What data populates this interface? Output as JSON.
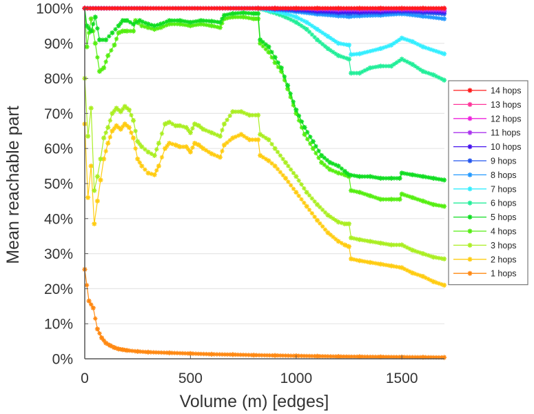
{
  "chart_data": {
    "type": "line",
    "title": "",
    "xlabel": "Volume (m) [edges]",
    "ylabel": "Mean reachable part",
    "xlim": [
      0,
      1700
    ],
    "ylim": [
      0,
      100
    ],
    "xticks": [
      0,
      500,
      1000,
      1500
    ],
    "xtick_labels": [
      "0",
      "500",
      "1000",
      "1500"
    ],
    "yticks": [
      0,
      10,
      20,
      30,
      40,
      50,
      60,
      70,
      80,
      90,
      100
    ],
    "ytick_labels": [
      "0%",
      "10%",
      "20%",
      "30%",
      "40%",
      "50%",
      "60%",
      "70%",
      "80%",
      "90%",
      "100%"
    ],
    "grid": "horizontal",
    "marker": "asterisk",
    "legend_position": "right",
    "series": [
      {
        "name": "14 hops",
        "color": "#ff1a1a",
        "x": [
          0,
          820,
          900,
          1000,
          1100,
          1200,
          1300,
          1400,
          1500,
          1600,
          1700
        ],
        "y": [
          100,
          100,
          100,
          100,
          100,
          100,
          100,
          100,
          100,
          100,
          100
        ]
      },
      {
        "name": "13 hops",
        "color": "#ff3399",
        "x": [
          0,
          820,
          900,
          1000,
          1100,
          1200,
          1300,
          1400,
          1500,
          1600,
          1700
        ],
        "y": [
          100,
          100,
          100,
          100,
          100,
          100,
          100,
          100,
          100,
          100,
          100
        ]
      },
      {
        "name": "12 hops",
        "color": "#ee22dd",
        "x": [
          0,
          820,
          900,
          1000,
          1100,
          1200,
          1300,
          1400,
          1500,
          1600,
          1700
        ],
        "y": [
          100,
          100,
          100,
          100,
          99.9,
          99.9,
          99.9,
          99.9,
          99.9,
          99.9,
          99.8
        ]
      },
      {
        "name": "11 hops",
        "color": "#aa33ee",
        "x": [
          0,
          820,
          900,
          1000,
          1100,
          1200,
          1300,
          1400,
          1500,
          1600,
          1700
        ],
        "y": [
          100,
          100,
          100,
          99.9,
          99.7,
          99.5,
          99.5,
          99.5,
          99.6,
          99.5,
          99.4
        ]
      },
      {
        "name": "10 hops",
        "color": "#4411ee",
        "x": [
          0,
          820,
          900,
          1000,
          1100,
          1200,
          1300,
          1400,
          1500,
          1600,
          1700
        ],
        "y": [
          100,
          100,
          99.9,
          99.7,
          99.3,
          99.0,
          99.0,
          99.1,
          99.4,
          99.2,
          99.0
        ]
      },
      {
        "name": "9 hops",
        "color": "#2255ee",
        "x": [
          0,
          820,
          900,
          1000,
          1100,
          1200,
          1250,
          1300,
          1400,
          1500,
          1600,
          1700
        ],
        "y": [
          100,
          100,
          99.8,
          99.4,
          98.9,
          98.6,
          98.5,
          98.6,
          98.7,
          99.0,
          98.7,
          98.4
        ]
      },
      {
        "name": "8 hops",
        "color": "#2299ff",
        "x": [
          0,
          820,
          900,
          1000,
          1100,
          1200,
          1250,
          1300,
          1400,
          1500,
          1600,
          1700
        ],
        "y": [
          100,
          100,
          99.6,
          99.0,
          98.3,
          97.8,
          97.6,
          97.8,
          98.0,
          98.4,
          97.7,
          97.0
        ]
      },
      {
        "name": "7 hops",
        "color": "#33eeff",
        "x": [
          0,
          820,
          880,
          950,
          1000,
          1050,
          1100,
          1150,
          1200,
          1250,
          1260,
          1300,
          1400,
          1450,
          1500,
          1550,
          1600,
          1700
        ],
        "y": [
          100,
          100,
          99.3,
          98.5,
          97.5,
          96.0,
          94.0,
          92.0,
          90.0,
          89.5,
          86.8,
          87.0,
          88.5,
          89.5,
          91.5,
          90.5,
          89.0,
          87.0
        ]
      },
      {
        "name": "6 hops",
        "color": "#22ee99",
        "x": [
          0,
          820,
          880,
          950,
          1000,
          1050,
          1100,
          1150,
          1200,
          1250,
          1260,
          1300,
          1350,
          1400,
          1450,
          1500,
          1550,
          1600,
          1650,
          1700
        ],
        "y": [
          100,
          100,
          99.0,
          97.5,
          96.0,
          94.0,
          91.0,
          88.5,
          86.5,
          85.5,
          81.5,
          81.5,
          83.0,
          83.5,
          83.5,
          85.5,
          84.0,
          82.0,
          81.0,
          79.5
        ]
      },
      {
        "name": "5 hops",
        "color": "#11dd22",
        "x": [
          0,
          10,
          30,
          50,
          70,
          100,
          130,
          160,
          180,
          200,
          230,
          260,
          300,
          330,
          360,
          400,
          450,
          500,
          550,
          600,
          640,
          660,
          700,
          750,
          800,
          820,
          830,
          870,
          900,
          930,
          960,
          1000,
          1040,
          1080,
          1120,
          1160,
          1200,
          1230,
          1250,
          1300,
          1350,
          1400,
          1450,
          1490,
          1500,
          1550,
          1600,
          1650,
          1700
        ],
        "y": [
          100,
          95,
          93.5,
          97.5,
          91,
          91,
          93,
          95,
          96.5,
          96.5,
          95.5,
          96.5,
          95.5,
          95,
          95.5,
          96.5,
          96.5,
          96,
          96.5,
          96.3,
          96,
          98,
          98.5,
          98.7,
          98.5,
          98.5,
          91,
          89,
          86,
          83,
          78,
          71,
          66,
          62,
          58,
          56,
          55,
          53.5,
          52.5,
          52,
          52,
          51.5,
          51.5,
          51.5,
          53,
          52.5,
          52,
          51.5,
          51
        ]
      },
      {
        "name": "4 hops",
        "color": "#55ee11",
        "x": [
          0,
          10,
          30,
          50,
          70,
          90,
          110,
          140,
          160,
          180,
          200,
          230,
          240,
          270,
          300,
          330,
          360,
          400,
          450,
          500,
          550,
          600,
          640,
          660,
          700,
          750,
          800,
          820,
          830,
          870,
          900,
          930,
          960,
          1000,
          1040,
          1080,
          1120,
          1160,
          1200,
          1230,
          1250,
          1260,
          1300,
          1350,
          1400,
          1450,
          1490,
          1500,
          1550,
          1600,
          1650,
          1700
        ],
        "y": [
          100,
          89,
          97,
          90,
          82,
          83,
          86.5,
          89.5,
          93,
          93.5,
          93.5,
          93.5,
          96.5,
          95,
          94.5,
          94,
          94.5,
          95.5,
          95.5,
          95,
          95.5,
          95,
          94.5,
          97,
          97.5,
          97.5,
          97,
          97,
          90,
          87.5,
          84.5,
          82,
          77,
          70,
          64,
          60,
          56,
          54,
          53,
          52.5,
          52,
          48,
          47.5,
          46.5,
          45.5,
          45.5,
          45.5,
          47,
          46,
          45,
          44,
          43.5
        ]
      },
      {
        "name": "3 hops",
        "color": "#aaee22",
        "x": [
          0,
          15,
          30,
          45,
          60,
          75,
          90,
          110,
          130,
          150,
          170,
          190,
          210,
          230,
          250,
          270,
          300,
          330,
          350,
          380,
          400,
          430,
          450,
          480,
          500,
          520,
          540,
          560,
          600,
          640,
          660,
          700,
          740,
          780,
          820,
          830,
          870,
          900,
          950,
          1000,
          1050,
          1100,
          1150,
          1200,
          1230,
          1250,
          1260,
          1300,
          1350,
          1400,
          1450,
          1500,
          1550,
          1600,
          1650,
          1700
        ],
        "y": [
          80,
          63.5,
          71.5,
          48,
          52,
          57,
          63,
          66,
          70,
          71.5,
          70.5,
          72,
          71,
          68,
          62,
          60.5,
          59,
          58,
          61.5,
          67,
          67.5,
          66.5,
          66.5,
          66,
          64.5,
          67,
          66.5,
          65.5,
          64.5,
          63.5,
          67,
          70.5,
          70.5,
          69.5,
          69.5,
          64,
          62.5,
          60,
          56,
          52,
          47.5,
          44,
          41,
          39,
          38.5,
          38.5,
          34.5,
          34,
          33.5,
          33,
          32.5,
          32.5,
          31,
          30,
          29,
          28.5
        ]
      },
      {
        "name": "2 hops",
        "color": "#ffcc11",
        "x": [
          0,
          15,
          30,
          45,
          60,
          75,
          90,
          110,
          130,
          150,
          170,
          190,
          210,
          230,
          250,
          270,
          300,
          330,
          350,
          380,
          400,
          430,
          450,
          480,
          500,
          520,
          540,
          560,
          600,
          640,
          660,
          700,
          740,
          780,
          820,
          830,
          870,
          900,
          950,
          1000,
          1050,
          1100,
          1150,
          1200,
          1230,
          1250,
          1260,
          1300,
          1350,
          1400,
          1450,
          1500,
          1550,
          1600,
          1650,
          1700
        ],
        "y": [
          67,
          46,
          55,
          38.5,
          45,
          51,
          57,
          61.5,
          65,
          66.5,
          65.5,
          67,
          66,
          63,
          57,
          55,
          53,
          52.5,
          55,
          60,
          61.5,
          61,
          60.5,
          60.5,
          59,
          61.5,
          61,
          60,
          58.5,
          57.5,
          61,
          63,
          64,
          62.5,
          62.5,
          58,
          56.5,
          55,
          51.5,
          47.5,
          43.5,
          39.5,
          36,
          33.5,
          32.5,
          32,
          28.5,
          28,
          27.5,
          27,
          26.5,
          26,
          24.5,
          23.5,
          22,
          21
        ]
      },
      {
        "name": "1 hops",
        "color": "#ff8811",
        "x": [
          0,
          20,
          40,
          60,
          80,
          100,
          120,
          140,
          160,
          180,
          200,
          250,
          300,
          400,
          500,
          600,
          700,
          800,
          900,
          1000,
          1100,
          1200,
          1300,
          1400,
          1500,
          1600,
          1700
        ],
        "y": [
          25.5,
          16.5,
          14.5,
          8.5,
          6,
          4.5,
          3.8,
          3.2,
          2.8,
          2.6,
          2.4,
          2.1,
          1.9,
          1.7,
          1.5,
          1.3,
          1.2,
          1.05,
          0.95,
          0.85,
          0.75,
          0.65,
          0.6,
          0.55,
          0.5,
          0.45,
          0.4
        ]
      }
    ]
  }
}
